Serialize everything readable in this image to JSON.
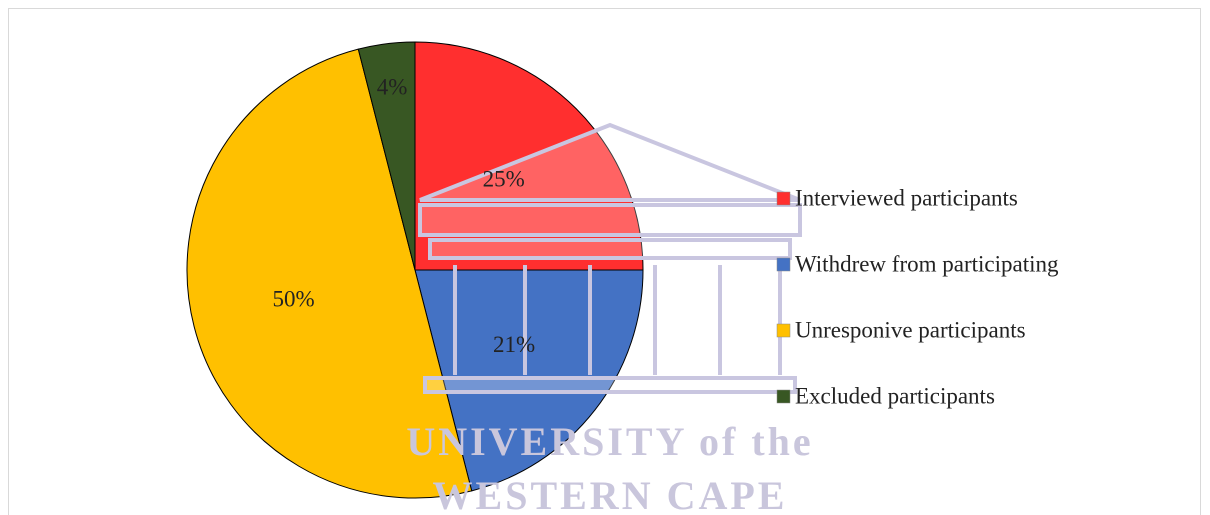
{
  "chart_data": {
    "type": "pie",
    "categories": [
      "Interviewed participants",
      "Withdrew from participating",
      "Unresponive participants",
      "Excluded participants"
    ],
    "values": [
      25,
      21,
      50,
      4
    ],
    "value_labels": [
      "25%",
      "21%",
      "50%",
      "4%"
    ],
    "colors": [
      "#ff2f2f",
      "#4472c4",
      "#ffc000",
      "#385723"
    ],
    "legend": "right",
    "watermark": [
      "UNIVERSITY of the",
      "WESTERN CAPE"
    ]
  }
}
